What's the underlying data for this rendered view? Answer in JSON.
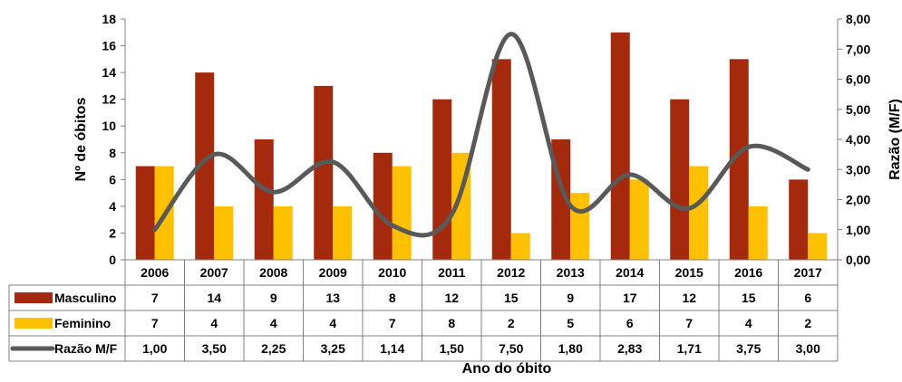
{
  "chart_data": {
    "type": "bar",
    "categories": [
      "2006",
      "2007",
      "2008",
      "2009",
      "2010",
      "2011",
      "2012",
      "2013",
      "2014",
      "2015",
      "2016",
      "2017"
    ],
    "series": [
      {
        "name": "Masculino",
        "type": "bar",
        "axis": "left",
        "color": "#A52A0D",
        "values": [
          7,
          14,
          9,
          13,
          8,
          12,
          15,
          9,
          17,
          12,
          15,
          6
        ],
        "labels": [
          "7",
          "14",
          "9",
          "13",
          "8",
          "12",
          "15",
          "9",
          "17",
          "12",
          "15",
          "6"
        ]
      },
      {
        "name": "Feminino",
        "type": "bar",
        "axis": "left",
        "color": "#FFC000",
        "values": [
          7,
          4,
          4,
          4,
          7,
          8,
          2,
          5,
          6,
          7,
          4,
          2
        ],
        "labels": [
          "7",
          "4",
          "4",
          "4",
          "7",
          "8",
          "2",
          "5",
          "6",
          "7",
          "4",
          "2"
        ]
      },
      {
        "name": "Razão M/F",
        "type": "line",
        "axis": "right",
        "color": "#595959",
        "values": [
          1.0,
          3.5,
          2.25,
          3.25,
          1.14,
          1.5,
          7.5,
          1.8,
          2.83,
          1.71,
          3.75,
          3.0
        ],
        "labels": [
          "1,00",
          "3,50",
          "2,25",
          "3,25",
          "1,14",
          "1,50",
          "7,50",
          "1,80",
          "2,83",
          "1,71",
          "3,75",
          "3,00"
        ]
      }
    ],
    "xlabel": "Ano do óbito",
    "ylabel": "Nº de óbitos",
    "y2label": "Razão (M/F)",
    "ylim": [
      0,
      18
    ],
    "y2lim": [
      0,
      8
    ],
    "yticks": [
      0,
      2,
      4,
      6,
      8,
      10,
      12,
      14,
      16,
      18
    ],
    "yticklabels": [
      "0",
      "2",
      "4",
      "6",
      "8",
      "10",
      "12",
      "14",
      "16",
      "18"
    ],
    "y2ticks": [
      0,
      1,
      2,
      3,
      4,
      5,
      6,
      7,
      8
    ],
    "y2ticklabels": [
      "0,00",
      "1,00",
      "2,00",
      "3,00",
      "4,00",
      "5,00",
      "6,00",
      "7,00",
      "8,00"
    ],
    "grid": false,
    "legend": "data-table"
  }
}
